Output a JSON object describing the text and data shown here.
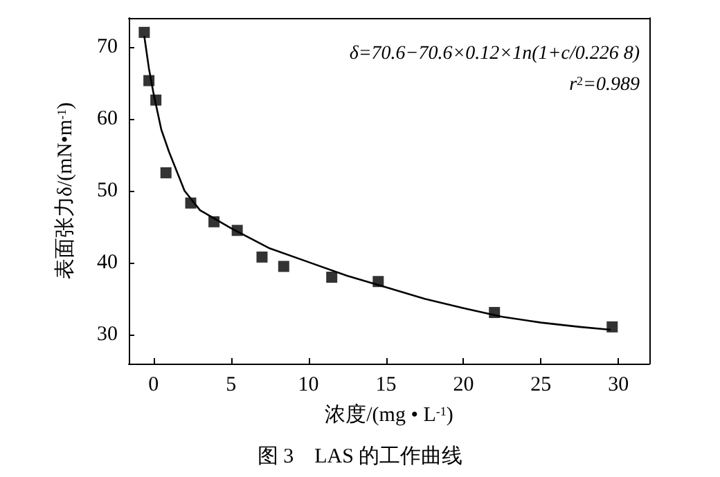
{
  "chart_data": {
    "type": "scatter",
    "title": "图 3　LAS 的工作曲线",
    "xlabel": "浓度/(mg • L$^{-1}$)",
    "ylabel": "表面张力δ/(mN•m$^{-1}$)",
    "annotations": [
      "δ=70.6−70.6×0.12×1n(1+c/0.226 8)",
      "r$^{2}$=0.989"
    ],
    "xlim": [
      -1.6,
      32
    ],
    "xticks": [
      0,
      5,
      10,
      15,
      20,
      25,
      30
    ],
    "ylim": [
      26,
      74
    ],
    "yticks": [
      30,
      40,
      50,
      60,
      70
    ],
    "grid": false,
    "series": [
      {
        "marker": "square",
        "color": "#000000",
        "x": [
          -0.6,
          -0.3,
          0.15,
          0.8,
          2.4,
          3.9,
          5.4,
          7.0,
          8.4,
          11.5,
          14.5,
          22.0,
          29.6
        ],
        "values": [
          72.0,
          65.3,
          62.6,
          52.5,
          48.3,
          45.7,
          44.5,
          40.8,
          39.5,
          38.0,
          37.4,
          33.1,
          31.1
        ]
      },
      {
        "type": "line",
        "marker": "none",
        "color": "#000000",
        "x": [
          -0.6,
          -0.3,
          0,
          0.5,
          1,
          2,
          3,
          5,
          7.5,
          10,
          12.5,
          15,
          17.5,
          20,
          22.5,
          25,
          27.5,
          29.5
        ],
        "values": [
          71.5,
          67,
          63.5,
          58.5,
          55.4,
          50,
          47.3,
          44.8,
          42,
          40.1,
          38.2,
          36.6,
          35,
          33.7,
          32.5,
          31.7,
          31.1,
          30.7
        ]
      }
    ]
  }
}
